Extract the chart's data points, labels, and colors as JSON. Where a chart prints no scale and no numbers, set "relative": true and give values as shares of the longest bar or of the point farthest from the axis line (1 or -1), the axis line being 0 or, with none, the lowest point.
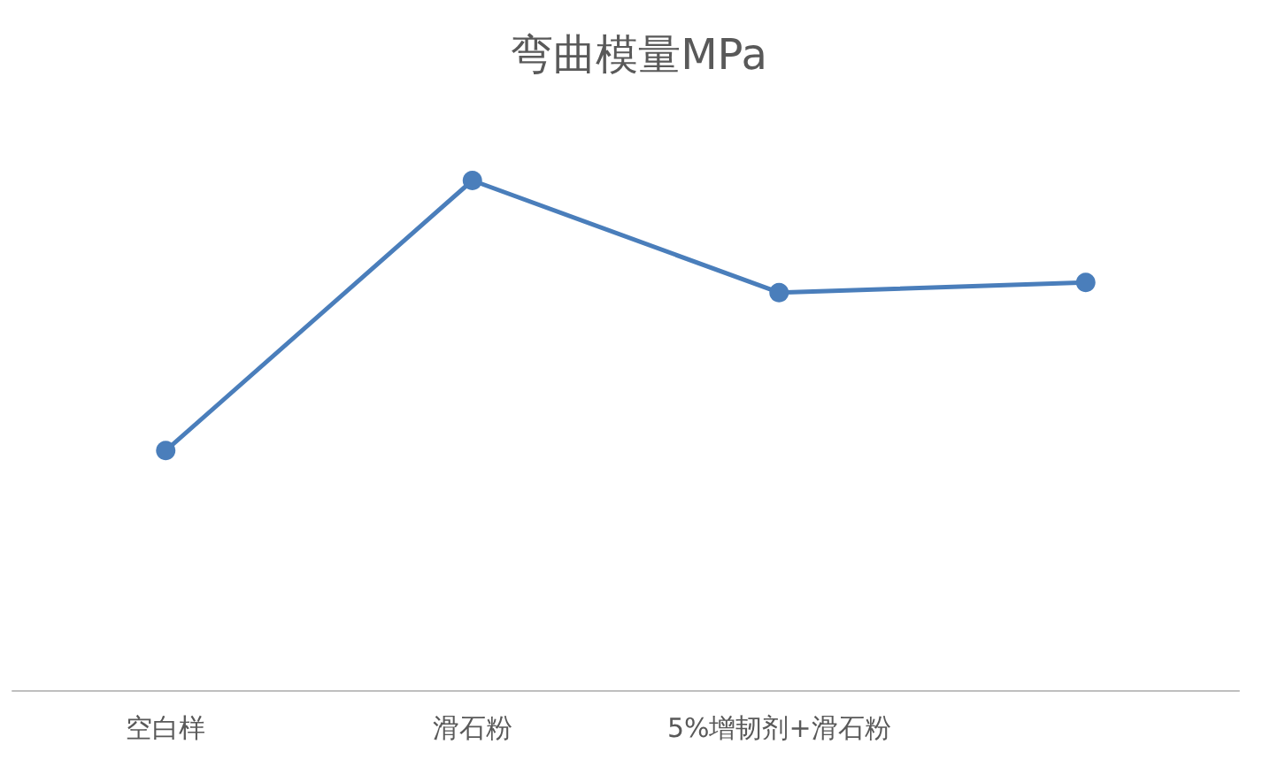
{
  "chart_data": {
    "type": "line",
    "title": "弯曲模量MPa",
    "relative": true,
    "categories": [
      "空白样",
      "滑石粉",
      "5%增韧剂+滑石粉",
      null
    ],
    "series": [
      {
        "color": "#4a7ebb",
        "values": [
          0.47,
          1,
          0.78,
          0.8
        ]
      }
    ],
    "marker": "circle",
    "line_style": "solid"
  }
}
